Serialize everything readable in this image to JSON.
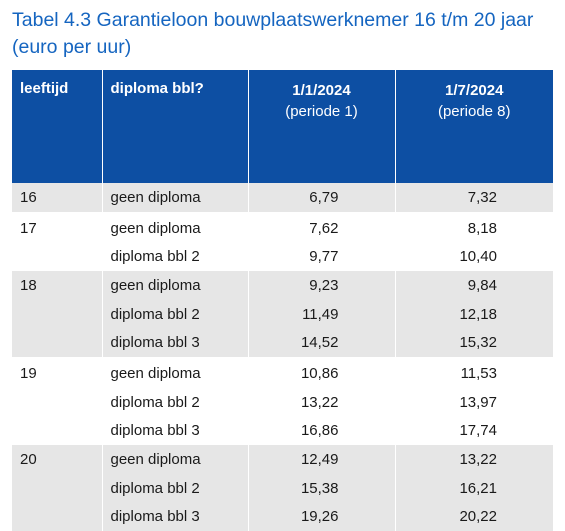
{
  "title": "Tabel 4.3 Garantieloon bouwplaatswerknemer 16 t/m 20 jaar (euro per uur)",
  "header": {
    "col_age": "leeftijd",
    "col_diploma": "diploma bbl?",
    "col_date1": "1/1/2024",
    "col_period1": "(periode 1)",
    "col_date2": "1/7/2024",
    "col_period2": "(periode 8)"
  },
  "rows": [
    {
      "age": "16",
      "diploma": "geen diploma",
      "v1": "6,79",
      "v2": "7,32"
    },
    {
      "age": "17",
      "diploma": "geen diploma",
      "v1": "7,62",
      "v2": "8,18"
    },
    {
      "age": "",
      "diploma": "diploma bbl 2",
      "v1": "9,77",
      "v2": "10,40"
    },
    {
      "age": "18",
      "diploma": "geen diploma",
      "v1": "9,23",
      "v2": "9,84"
    },
    {
      "age": "",
      "diploma": "diploma bbl 2",
      "v1": "11,49",
      "v2": "12,18"
    },
    {
      "age": "",
      "diploma": "diploma bbl 3",
      "v1": "14,52",
      "v2": "15,32"
    },
    {
      "age": "19",
      "diploma": "geen diploma",
      "v1": "10,86",
      "v2": "11,53"
    },
    {
      "age": "",
      "diploma": "diploma bbl 2",
      "v1": "13,22",
      "v2": "13,97"
    },
    {
      "age": "",
      "diploma": "diploma bbl 3",
      "v1": "16,86",
      "v2": "17,74"
    },
    {
      "age": "20",
      "diploma": "geen diploma",
      "v1": "12,49",
      "v2": "13,22"
    },
    {
      "age": "",
      "diploma": "diploma bbl 2",
      "v1": "15,38",
      "v2": "16,21"
    },
    {
      "age": "",
      "diploma": "diploma bbl 3",
      "v1": "19,26",
      "v2": "20,22"
    }
  ],
  "colors": {
    "title": "#1565c0",
    "header_bg": "#0d4fa3",
    "shade_bg": "#e6e6e6"
  }
}
